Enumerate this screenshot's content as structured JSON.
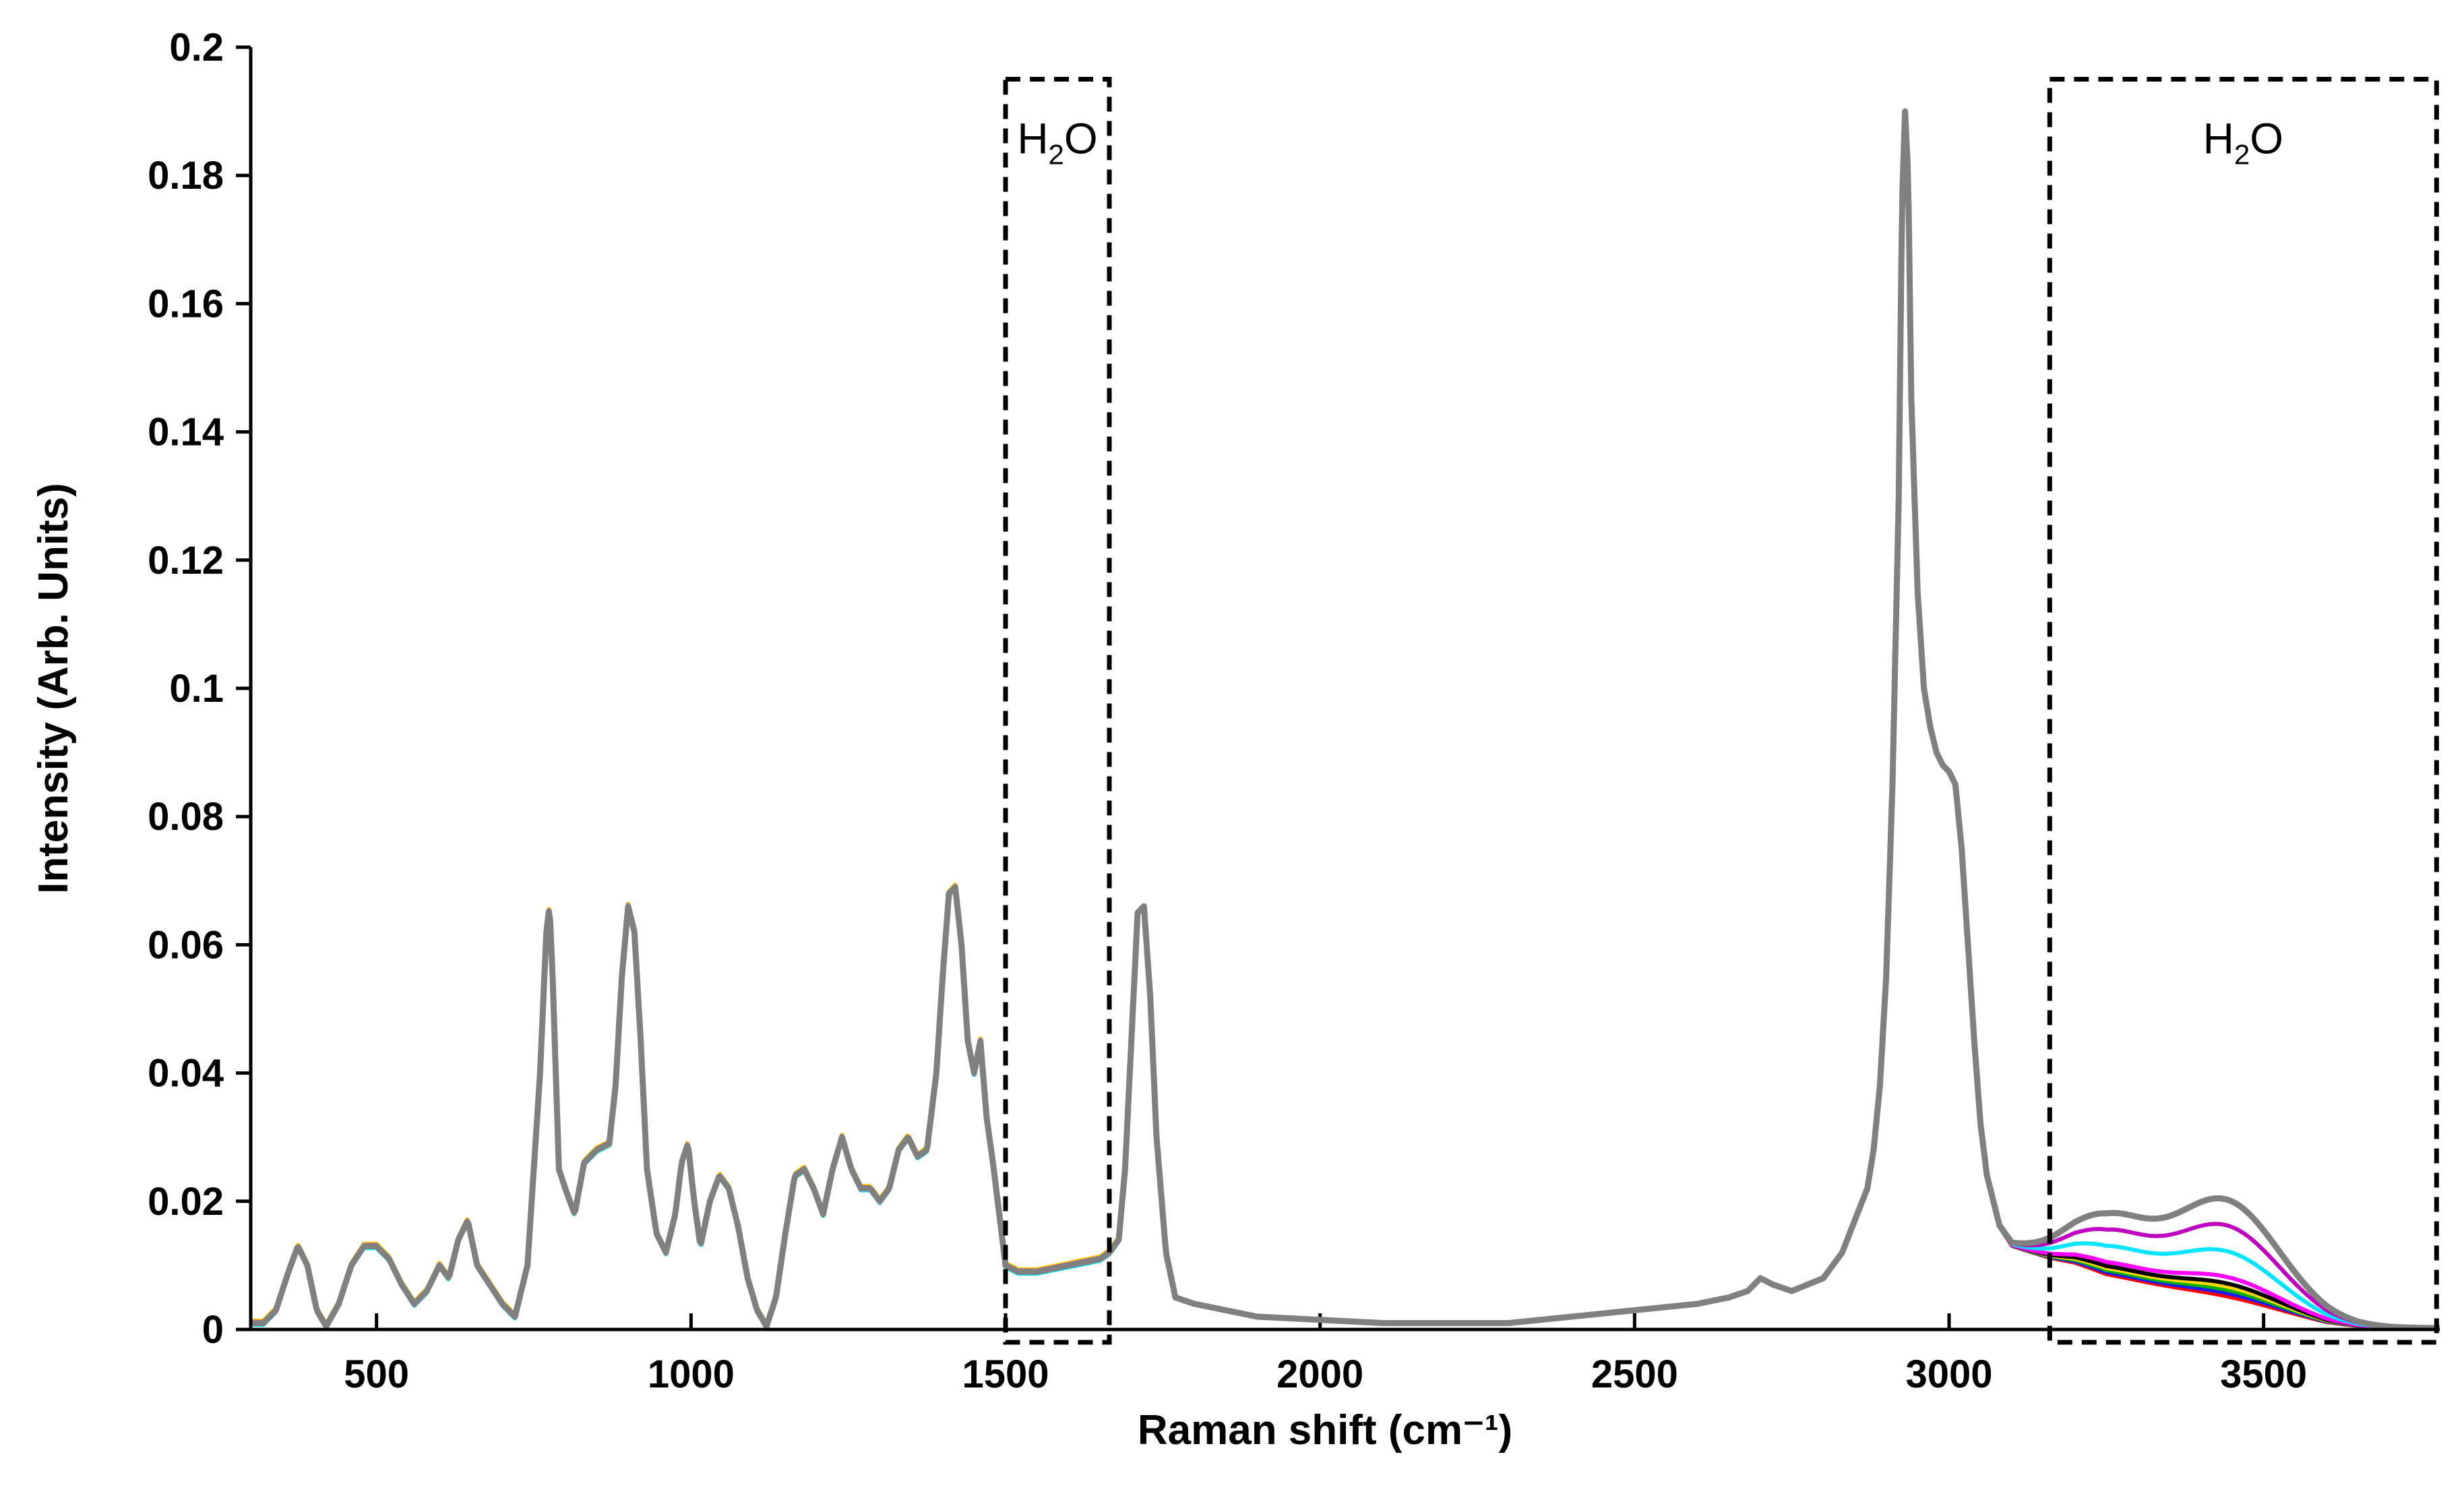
{
  "chart_data": {
    "type": "line",
    "xlabel": "Raman shift (cm⁻¹)",
    "ylabel": "Intensity (Arb. Units)",
    "xlim": [
      300,
      3780
    ],
    "ylim": [
      0,
      0.2
    ],
    "x_ticks": [
      500,
      1000,
      1500,
      2000,
      2500,
      3000,
      3500
    ],
    "x_tick_labels": [
      "500",
      "1000",
      "1500",
      "2000",
      "2500",
      "3000",
      "3500"
    ],
    "y_ticks": [
      0,
      0.02,
      0.04,
      0.06,
      0.08,
      0.1,
      0.12,
      0.14,
      0.16,
      0.18,
      0.2
    ],
    "y_tick_labels": [
      "0",
      "0.02",
      "0.04",
      "0.06",
      "0.08",
      "0.1",
      "0.12",
      "0.14",
      "0.16",
      "0.18",
      "0.2"
    ],
    "grid": false,
    "legend": "none",
    "annotations": [
      {
        "label_main": "H",
        "label_sub": "2",
        "label_tail": "O",
        "x_range": [
          1500,
          1665
        ],
        "y_range": [
          -0.002,
          0.195
        ],
        "style": "dashed-box"
      },
      {
        "label_main": "H",
        "label_sub": "2",
        "label_tail": "O",
        "x_range": [
          3160,
          3775
        ],
        "y_range": [
          -0.002,
          0.195
        ],
        "style": "dashed-box"
      }
    ],
    "base_spectrum": {
      "x": [
        300,
        320,
        340,
        360,
        375,
        390,
        405,
        420,
        440,
        460,
        480,
        500,
        520,
        540,
        560,
        580,
        600,
        615,
        630,
        645,
        660,
        680,
        700,
        720,
        740,
        760,
        770,
        775,
        780,
        790,
        800,
        815,
        830,
        850,
        870,
        880,
        890,
        900,
        910,
        920,
        930,
        945,
        960,
        975,
        985,
        995,
        1005,
        1015,
        1030,
        1045,
        1060,
        1075,
        1090,
        1105,
        1120,
        1135,
        1150,
        1165,
        1180,
        1195,
        1210,
        1225,
        1240,
        1255,
        1270,
        1285,
        1300,
        1315,
        1330,
        1345,
        1360,
        1375,
        1390,
        1400,
        1410,
        1420,
        1430,
        1440,
        1450,
        1460,
        1470,
        1480,
        1490,
        1500,
        1520,
        1550,
        1600,
        1650,
        1665,
        1680,
        1690,
        1700,
        1710,
        1720,
        1730,
        1740,
        1755,
        1770,
        1800,
        1850,
        1900,
        2000,
        2100,
        2200,
        2300,
        2400,
        2500,
        2600,
        2650,
        2680,
        2700,
        2720,
        2750,
        2800,
        2830,
        2850,
        2870,
        2880,
        2890,
        2900,
        2910,
        2920,
        2925,
        2930,
        2935,
        2940,
        2950,
        2960,
        2970,
        2980,
        2990,
        3000,
        3010,
        3020,
        3030,
        3040,
        3050,
        3060,
        3080,
        3100,
        3130,
        3160,
        3200,
        3250,
        3300,
        3350,
        3400,
        3450,
        3500,
        3550,
        3600,
        3650,
        3700,
        3780
      ],
      "y": [
        0.001,
        0.001,
        0.003,
        0.009,
        0.013,
        0.01,
        0.003,
        0.0005,
        0.004,
        0.01,
        0.013,
        0.013,
        0.011,
        0.007,
        0.004,
        0.006,
        0.01,
        0.008,
        0.014,
        0.017,
        0.01,
        0.007,
        0.004,
        0.002,
        0.01,
        0.04,
        0.062,
        0.066,
        0.055,
        0.025,
        0.022,
        0.018,
        0.026,
        0.028,
        0.029,
        0.038,
        0.055,
        0.066,
        0.062,
        0.045,
        0.025,
        0.015,
        0.012,
        0.018,
        0.026,
        0.029,
        0.02,
        0.013,
        0.02,
        0.024,
        0.022,
        0.016,
        0.008,
        0.003,
        0.0005,
        0.005,
        0.015,
        0.024,
        0.025,
        0.022,
        0.018,
        0.025,
        0.03,
        0.025,
        0.022,
        0.022,
        0.02,
        0.022,
        0.028,
        0.03,
        0.027,
        0.028,
        0.04,
        0.055,
        0.068,
        0.069,
        0.06,
        0.045,
        0.04,
        0.045,
        0.033,
        0.026,
        0.018,
        0.01,
        0.009,
        0.009,
        0.01,
        0.011,
        0.012,
        0.014,
        0.025,
        0.045,
        0.065,
        0.066,
        0.052,
        0.03,
        0.012,
        0.005,
        0.004,
        0.003,
        0.002,
        0.0015,
        0.001,
        0.001,
        0.001,
        0.002,
        0.003,
        0.004,
        0.005,
        0.006,
        0.008,
        0.007,
        0.006,
        0.008,
        0.012,
        0.017,
        0.022,
        0.028,
        0.038,
        0.055,
        0.085,
        0.13,
        0.175,
        0.19,
        0.18,
        0.145,
        0.115,
        0.1,
        0.094,
        0.09,
        0.088,
        0.087,
        0.085,
        0.075,
        0.06,
        0.045,
        0.032,
        0.024,
        0.016,
        0.013,
        0.012,
        0.011,
        0.01,
        0.008,
        0.007,
        0.006,
        0.005,
        0.004,
        0.003,
        0.002,
        0.001,
        0.0005,
        0.0003,
        0.0002
      ]
    },
    "water_band": {
      "center": 3440,
      "width": 120,
      "shoulder_center": 3250,
      "shoulder_width": 90
    },
    "series": [
      {
        "color": "#ff0000",
        "offset": 0.0003,
        "water": 0.001
      },
      {
        "color": "#1a1aff",
        "offset": -0.0002,
        "water": 0.0015
      },
      {
        "color": "#00b000",
        "offset": 0.0001,
        "water": 0.002
      },
      {
        "color": "#ffd700",
        "offset": 0.0004,
        "water": 0.0025
      },
      {
        "color": "#000000",
        "offset": 0.0,
        "water": 0.003
      },
      {
        "color": "#ff00ff",
        "offset": 0.0002,
        "water": 0.004
      },
      {
        "color": "#00e5ff",
        "offset": -0.0003,
        "water": 0.008
      },
      {
        "color": "#c000c0",
        "offset": 0.0001,
        "water": 0.012
      },
      {
        "color": "#808080",
        "offset": 0.0,
        "water": 0.016
      }
    ]
  }
}
